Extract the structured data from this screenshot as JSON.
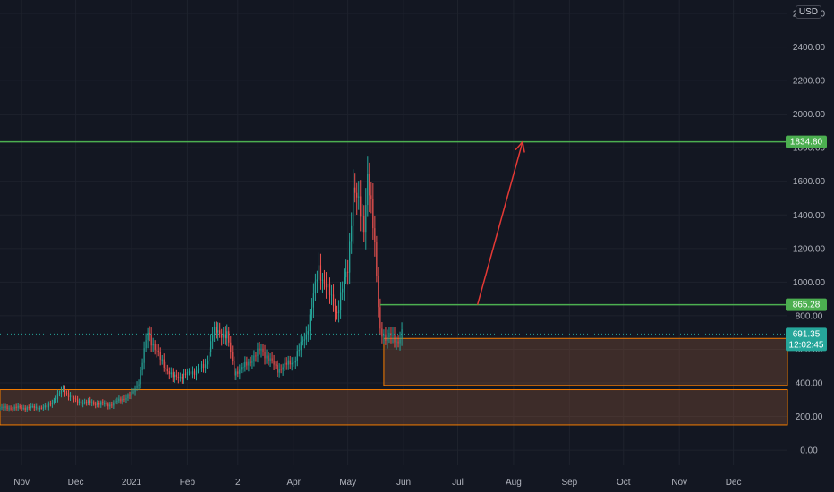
{
  "currency_label": "USD",
  "chart_data": {
    "type": "candlestick",
    "title": "",
    "y_axis": {
      "ticks": [
        0,
        200,
        400,
        600,
        800,
        1000,
        1200,
        1400,
        1600,
        1800,
        2000,
        2200,
        2400,
        2600
      ],
      "tick_labels": [
        "0.00",
        "200.00",
        "400.00",
        "600.00",
        "800.00",
        "1000.00",
        "1200.00",
        "1400.00",
        "1600.00",
        "1800.00",
        "2000.00",
        "2200.00",
        "2400.00",
        "2600.00"
      ],
      "range": [
        -90,
        2680
      ]
    },
    "x_axis": {
      "range": [
        "2020-10-20",
        "2021-12-31"
      ],
      "ticks": [
        {
          "date": "2020-11-01",
          "label": "Nov"
        },
        {
          "date": "2020-12-01",
          "label": "Dec"
        },
        {
          "date": "2021-01-01",
          "label": "2021"
        },
        {
          "date": "2021-02-01",
          "label": "Feb"
        },
        {
          "date": "2021-03-01",
          "label": "2"
        },
        {
          "date": "2021-04-01",
          "label": "Apr"
        },
        {
          "date": "2021-05-01",
          "label": "May"
        },
        {
          "date": "2021-06-01",
          "label": "Jun"
        },
        {
          "date": "2021-07-01",
          "label": "Jul"
        },
        {
          "date": "2021-08-01",
          "label": "Aug"
        },
        {
          "date": "2021-09-01",
          "label": "Sep"
        },
        {
          "date": "2021-10-01",
          "label": "Oct"
        },
        {
          "date": "2021-11-01",
          "label": "Nov"
        },
        {
          "date": "2021-12-01",
          "label": "Dec"
        }
      ]
    },
    "price_path": [
      {
        "date": "2020-10-20",
        "price": 250
      },
      {
        "date": "2020-11-15",
        "price": 255
      },
      {
        "date": "2020-11-24",
        "price": 360
      },
      {
        "date": "2020-12-01",
        "price": 290
      },
      {
        "date": "2020-12-20",
        "price": 270
      },
      {
        "date": "2021-01-01",
        "price": 330
      },
      {
        "date": "2021-01-05",
        "price": 410
      },
      {
        "date": "2021-01-10",
        "price": 700
      },
      {
        "date": "2021-01-17",
        "price": 540
      },
      {
        "date": "2021-01-24",
        "price": 430
      },
      {
        "date": "2021-02-01",
        "price": 450
      },
      {
        "date": "2021-02-11",
        "price": 500
      },
      {
        "date": "2021-02-15",
        "price": 700
      },
      {
        "date": "2021-02-23",
        "price": 690
      },
      {
        "date": "2021-02-27",
        "price": 460
      },
      {
        "date": "2021-03-05",
        "price": 500
      },
      {
        "date": "2021-03-14",
        "price": 600
      },
      {
        "date": "2021-03-23",
        "price": 480
      },
      {
        "date": "2021-04-01",
        "price": 530
      },
      {
        "date": "2021-04-08",
        "price": 690
      },
      {
        "date": "2021-04-15",
        "price": 1080
      },
      {
        "date": "2021-04-25",
        "price": 820
      },
      {
        "date": "2021-05-01",
        "price": 1090
      },
      {
        "date": "2021-05-04",
        "price": 1550
      },
      {
        "date": "2021-05-10",
        "price": 1350
      },
      {
        "date": "2021-05-12",
        "price": 1630
      },
      {
        "date": "2021-05-16",
        "price": 1220
      },
      {
        "date": "2021-05-19",
        "price": 720
      },
      {
        "date": "2021-05-22",
        "price": 640
      },
      {
        "date": "2021-05-25",
        "price": 710
      },
      {
        "date": "2021-05-29",
        "price": 620
      },
      {
        "date": "2021-05-31",
        "price": 691.35
      }
    ],
    "levels": [
      {
        "name": "resistance-high",
        "price": 1834.8,
        "label": "1834.80",
        "color": "#4caf50",
        "start": "2020-10-20"
      },
      {
        "name": "resistance-mid",
        "price": 865.28,
        "label": "865.28",
        "color": "#4caf50",
        "start": "2021-05-19"
      }
    ],
    "zones": [
      {
        "name": "upper-demand-zone",
        "top": 665,
        "bottom": 385,
        "start": "2021-05-21",
        "color": "#f57c00"
      },
      {
        "name": "lower-demand-zone",
        "top": 360,
        "bottom": 150,
        "start": "2020-10-20",
        "color": "#f57c00"
      }
    ],
    "projection": {
      "from": {
        "date": "2021-07-12",
        "price": 865
      },
      "to": {
        "date": "2021-08-06",
        "price": 1834.8
      },
      "color": "#e53935"
    },
    "current_price": {
      "price": 691.35,
      "label": "691.35",
      "countdown": "12:02:45",
      "color": "#26a69a"
    },
    "colors": {
      "up": "#26a69a",
      "down": "#ef5350",
      "grid": "#1e222d",
      "axis_text": "#b2b5be"
    }
  }
}
